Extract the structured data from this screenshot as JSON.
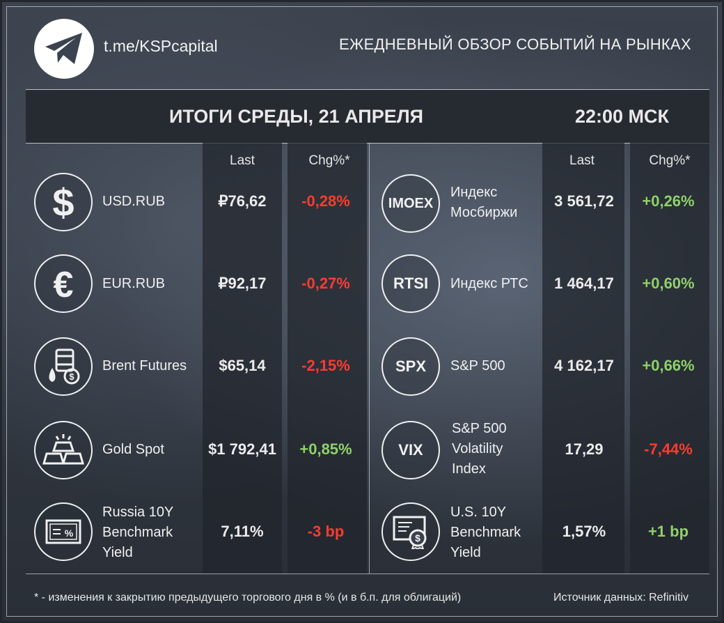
{
  "header": {
    "channel": "t.me/KSPcapital",
    "headline": "ЕЖЕДНЕВНЫЙ ОБЗОР СОБЫТИЙ НА РЫНКАХ",
    "title": "ИТОГИ СРЕДЫ, 21 АПРЕЛЯ",
    "time": "22:00 МСК"
  },
  "columns": {
    "last": "Last",
    "chg": "Chg%*"
  },
  "left_rows": [
    {
      "icon": "dollar-icon",
      "label": "USD.RUB",
      "last": "₽76,62",
      "chg": "-0,28%",
      "dir": "neg"
    },
    {
      "icon": "euro-icon",
      "label": "EUR.RUB",
      "last": "₽92,17",
      "chg": "-0,27%",
      "dir": "neg"
    },
    {
      "icon": "oil-barrel-icon",
      "label": "Brent Futures",
      "last": "$65,14",
      "chg": "-2,15%",
      "dir": "neg"
    },
    {
      "icon": "gold-bar-icon",
      "label": "Gold Spot",
      "last": "$1 792,41",
      "chg": "+0,85%",
      "dir": "pos"
    },
    {
      "icon": "bond-certificate-icon",
      "label": "Russia 10Y Benchmark Yield",
      "last": "7,11%",
      "chg": "-3 bp",
      "dir": "neg"
    }
  ],
  "right_rows": [
    {
      "ticker": "IMOEX",
      "label": "Индекс Мосбиржи",
      "last": "3 561,72",
      "chg": "+0,26%",
      "dir": "pos"
    },
    {
      "ticker": "RTSI",
      "label": "Индекс РТС",
      "last": "1 464,17",
      "chg": "+0,60%",
      "dir": "pos"
    },
    {
      "ticker": "SPX",
      "label": "S&P 500",
      "last": "4 162,17",
      "chg": "+0,66%",
      "dir": "pos"
    },
    {
      "ticker": "VIX",
      "label": "S&P 500 Volatility Index",
      "last": "17,29",
      "chg": "-7,44%",
      "dir": "neg"
    },
    {
      "icon": "dollar-certificate-icon",
      "label": "U.S. 10Y Benchmark Yield",
      "last": "1,57%",
      "chg": "+1 bp",
      "dir": "pos"
    }
  ],
  "footer": {
    "note": "* - изменения к закрытию предыдущего торгового дня в % (и в б.п. для облигаций)",
    "source": "Источник данных: Refinitiv"
  },
  "colors": {
    "negative": "#ff3b30",
    "positive": "#8fd16a"
  }
}
